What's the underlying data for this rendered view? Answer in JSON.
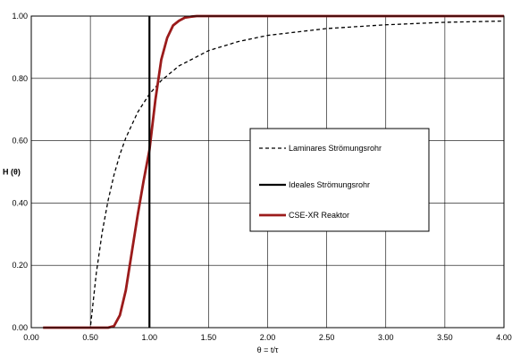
{
  "chart_data": {
    "type": "line",
    "xlabel": "θ = t/τ",
    "ylabel": "H (θ)",
    "xlim": [
      0,
      4
    ],
    "ylim": [
      0,
      1
    ],
    "x_ticks": [
      "0.00",
      "0.50",
      "1.00",
      "1.50",
      "2.00",
      "2.50",
      "3.00",
      "3.50",
      "4.00"
    ],
    "y_ticks": [
      "0.00",
      "0.20",
      "0.40",
      "0.60",
      "0.80",
      "1.00"
    ],
    "grid": true,
    "legend_position": "center-right",
    "series": [
      {
        "name": "Laminares Strömungsrohr",
        "style": "dashed",
        "color": "#000000",
        "x": [
          0.1,
          0.5,
          0.5,
          0.55,
          0.6,
          0.65,
          0.7,
          0.75,
          0.8,
          0.9,
          1.0,
          1.1,
          1.25,
          1.5,
          1.75,
          2.0,
          2.5,
          3.0,
          3.5,
          4.0
        ],
        "y": [
          0.0,
          0.0,
          0.0,
          0.174,
          0.306,
          0.408,
          0.49,
          0.556,
          0.609,
          0.691,
          0.75,
          0.793,
          0.84,
          0.889,
          0.918,
          0.938,
          0.96,
          0.972,
          0.98,
          0.984
        ]
      },
      {
        "name": "Ideales Strömungsrohr",
        "style": "solid-thick",
        "color": "#000000",
        "x": [
          1.0,
          1.0
        ],
        "y": [
          0.0,
          1.0
        ]
      },
      {
        "name": "CSE-XR Reaktor",
        "style": "solid",
        "color": "#9b1b1b",
        "x": [
          0.1,
          0.6,
          0.65,
          0.7,
          0.75,
          0.8,
          0.85,
          0.9,
          0.95,
          1.0,
          1.05,
          1.1,
          1.15,
          1.2,
          1.25,
          1.3,
          1.35,
          1.4,
          1.5,
          2.0,
          3.0,
          4.0
        ],
        "y": [
          0.0,
          0.0,
          0.0,
          0.005,
          0.04,
          0.12,
          0.24,
          0.36,
          0.47,
          0.57,
          0.73,
          0.86,
          0.93,
          0.97,
          0.985,
          0.995,
          0.998,
          1.0,
          1.0,
          1.0,
          1.0,
          1.0
        ]
      }
    ]
  }
}
